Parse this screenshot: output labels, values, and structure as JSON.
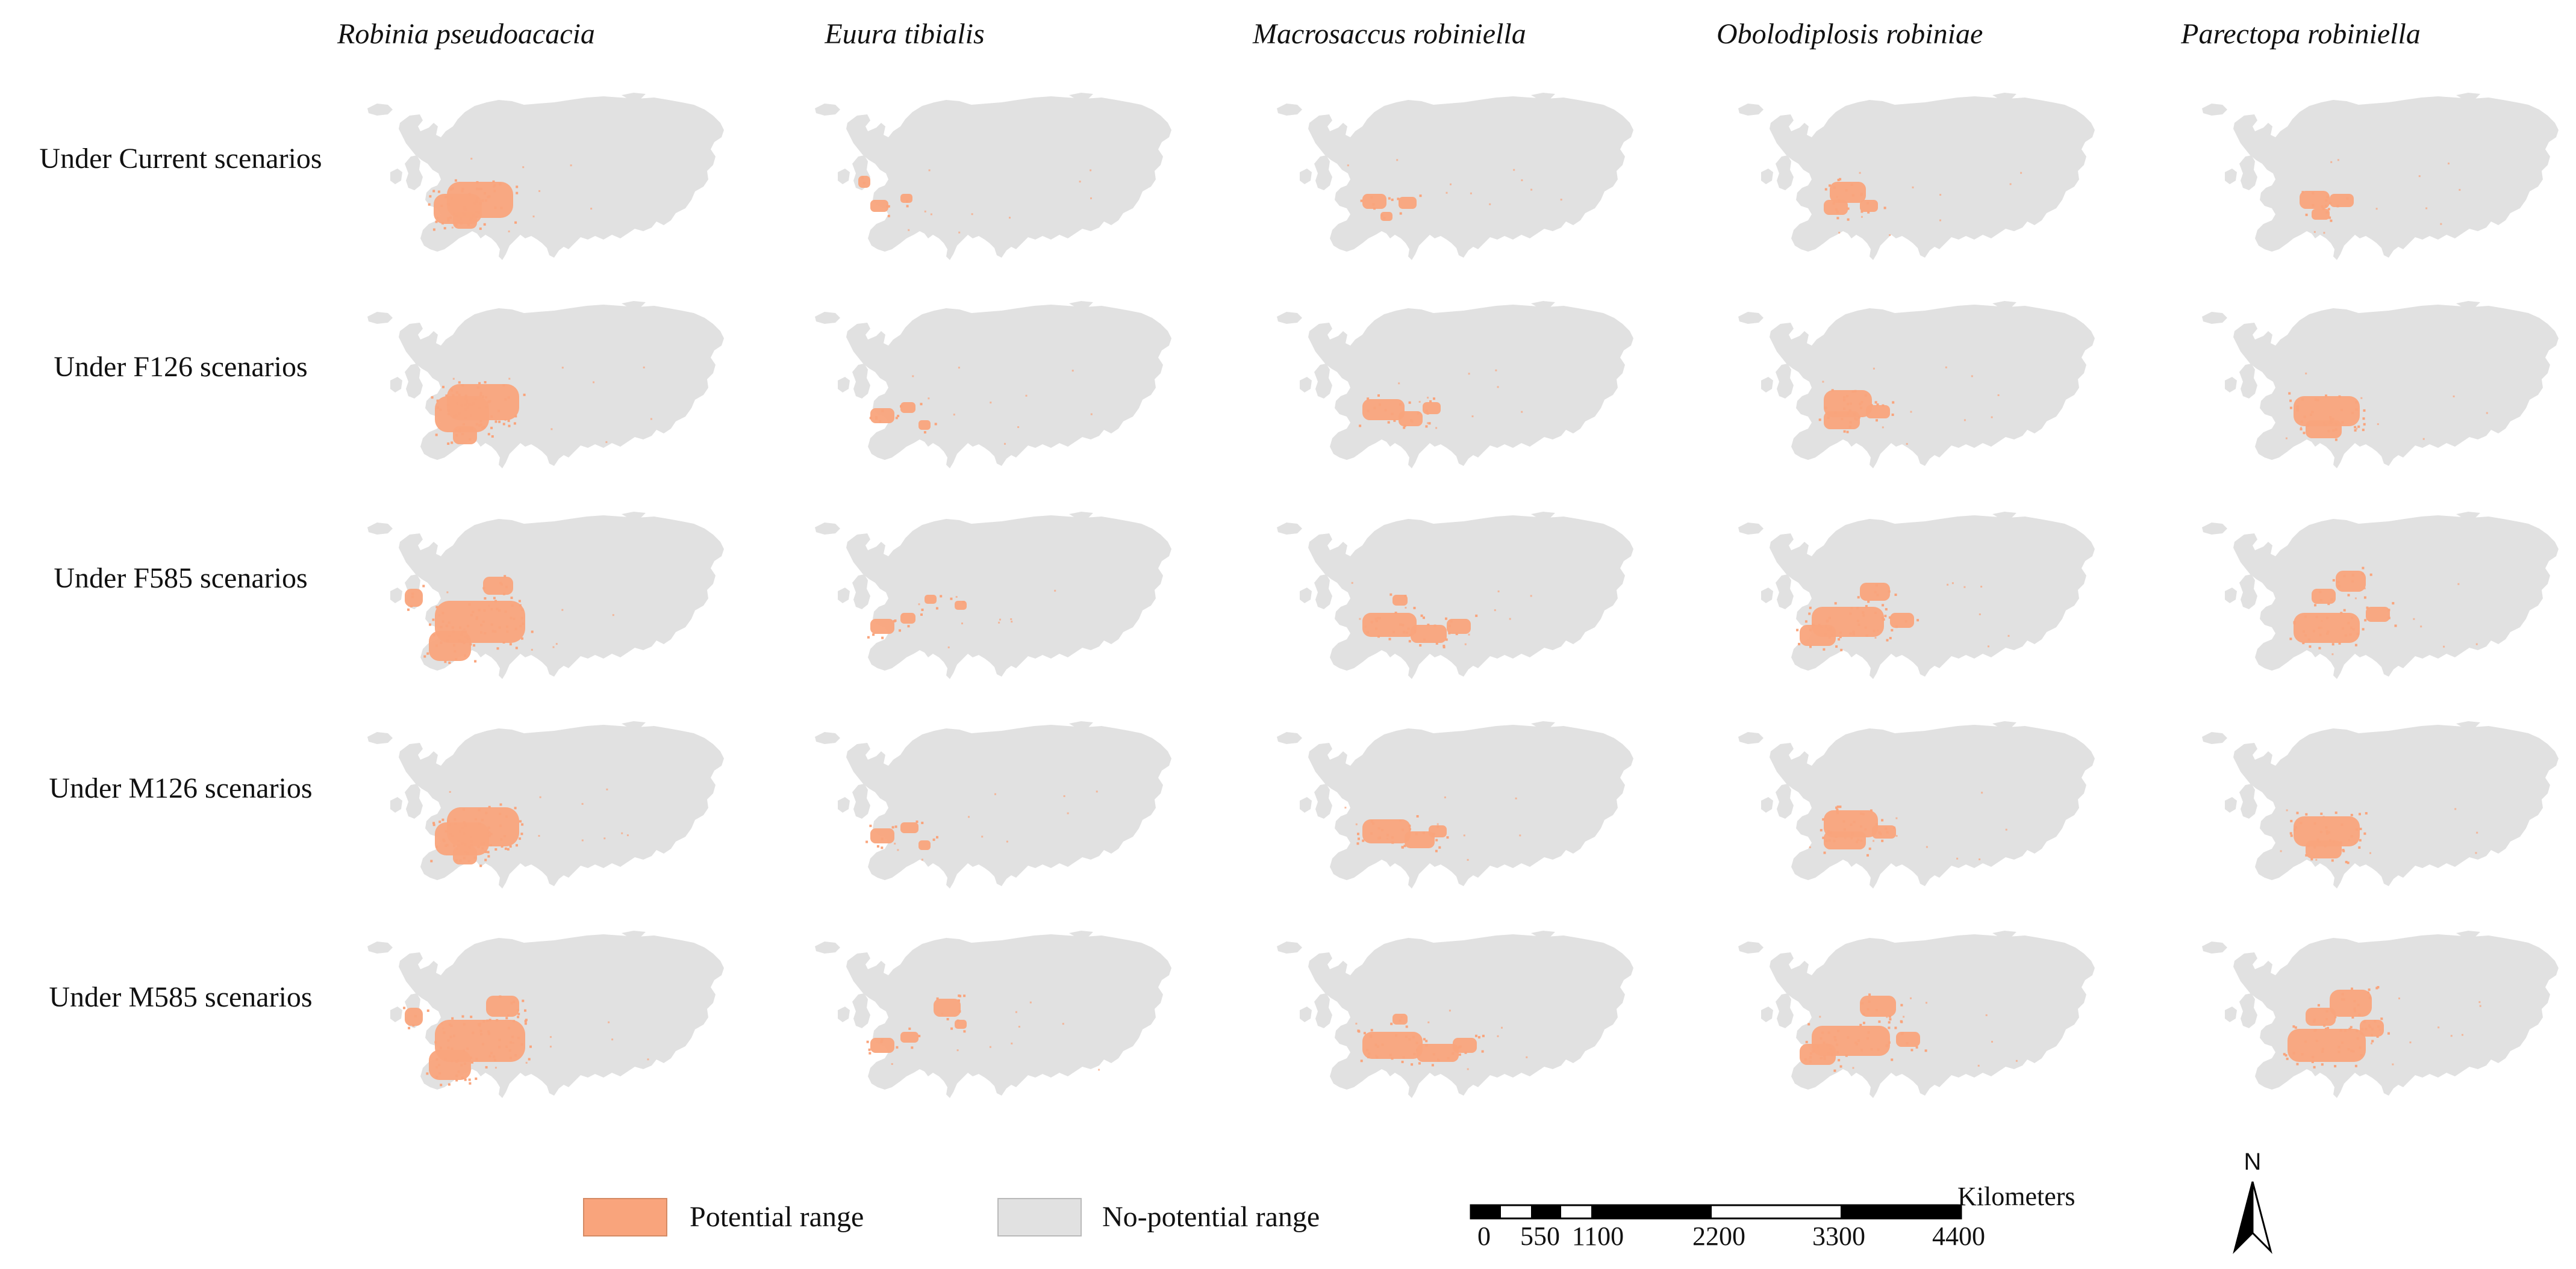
{
  "columns": [
    "Robinia pseudoacacia",
    "Euura tibialis",
    "Macrosaccus robiniella",
    "Obolodiplosis robiniae",
    "Parectopa robiniella"
  ],
  "rows": [
    "Under Current scenarios",
    "Under F126 scenarios",
    "Under F585 scenarios",
    "Under M126 scenarios",
    "Under M585 scenarios"
  ],
  "legend": {
    "potential": "Potential range",
    "no_potential": "No-potential range"
  },
  "scale_bar": {
    "unit": "Kilometers",
    "ticks": [
      "0",
      "550",
      "1100",
      "2200",
      "3300",
      "4400"
    ]
  },
  "north_arrow": "N",
  "colors": {
    "potential": "#F9A47C",
    "no_potential": "#E1E1E1",
    "potential_edge": "#E98C60"
  },
  "map_grid": {
    "Robinia pseudoacacia": {
      "Under Current scenarios": "large block over western and central Europe (France, Germany, northern Italy)",
      "Under F126 scenarios": "large block over western and central Europe, shifted slightly north",
      "Under F585 scenarios": "broad coverage of western Europe plus southern Scandinavia and British Isles",
      "Under M126 scenarios": "large block over western and central Europe",
      "Under M585 scenarios": "broad coverage of western Europe, British Isles and southern Scandinavia"
    },
    "Euura tibialis": {
      "Under Current scenarios": "scattered patches in France and the British Isles",
      "Under F126 scenarios": "scattered patches in western Europe",
      "Under F585 scenarios": "scattered patches in western and northern Europe",
      "Under M126 scenarios": "scattered patches in western Europe",
      "Under M585 scenarios": "patches in western Europe and southern Scandinavia"
    },
    "Macrosaccus robiniella": {
      "Under Current scenarios": "scattered patches in central Europe",
      "Under F126 scenarios": "scattered patches across central Europe",
      "Under F585 scenarios": "patches across central and eastern Europe",
      "Under M126 scenarios": "patches across central Europe",
      "Under M585 scenarios": "patches across central and eastern Europe"
    },
    "Obolodiplosis robiniae": {
      "Under Current scenarios": "patches in central Europe",
      "Under F126 scenarios": "patches across central Europe",
      "Under F585 scenarios": "patches across western, central and northern Europe",
      "Under M126 scenarios": "patches across central Europe",
      "Under M585 scenarios": "patches across western, central and northern Europe"
    },
    "Parectopa robiniella": {
      "Under Current scenarios": "scattered patches in central Europe",
      "Under F126 scenarios": "block across central Europe",
      "Under F585 scenarios": "patches across central and eastern Europe and southern Scandinavia",
      "Under M126 scenarios": "block across central Europe",
      "Under M585 scenarios": "large patches across central Europe and southern Scandinavia"
    }
  }
}
